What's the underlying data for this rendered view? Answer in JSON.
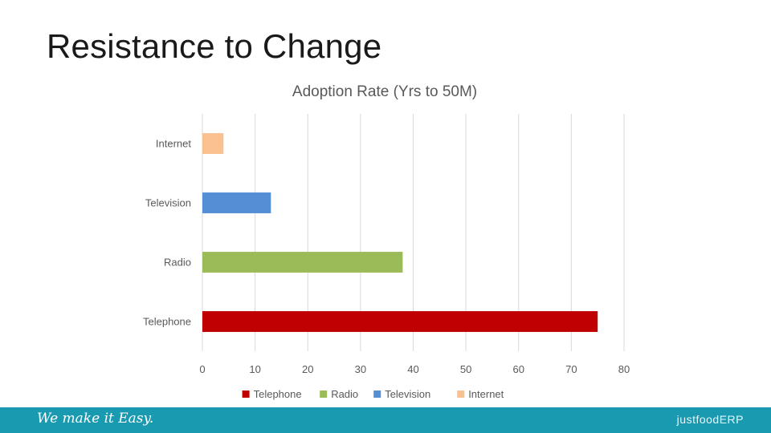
{
  "slide": {
    "title": "Resistance to Change",
    "footer_tagline": "We make it Easy.",
    "footer_brand": "justfoodERP"
  },
  "colors": {
    "footer": "#1a9ab0",
    "telephone": "#c00000",
    "radio": "#9bbb59",
    "television": "#558ed5",
    "internet": "#fac090"
  },
  "chart_data": {
    "type": "bar",
    "orientation": "horizontal",
    "title": "Adoption Rate (Yrs to 50M)",
    "categories": [
      "Telephone",
      "Radio",
      "Television",
      "Internet"
    ],
    "values": [
      75,
      38,
      13,
      4
    ],
    "colors": [
      "#c00000",
      "#9bbb59",
      "#558ed5",
      "#fac090"
    ],
    "xlim": [
      0,
      80
    ],
    "xticks": [
      0,
      10,
      20,
      30,
      40,
      50,
      60,
      70,
      80
    ],
    "grid": true,
    "legend": {
      "placement": "bottom",
      "entries": [
        "Telephone",
        "Radio",
        "Television",
        "Internet"
      ]
    }
  }
}
